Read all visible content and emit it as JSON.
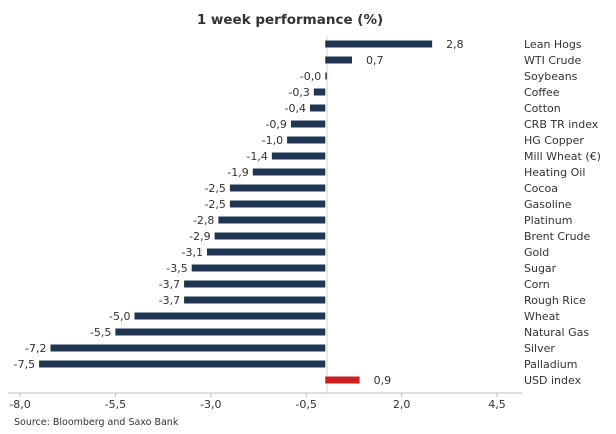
{
  "chart_data": {
    "type": "bar",
    "orientation": "horizontal",
    "title": "1 week performance (%)",
    "categories": [
      "Lean Hogs",
      "WTI Crude",
      "Soybeans",
      "Coffee",
      "Cotton",
      "CRB TR index",
      "HG Copper",
      "Mill Wheat (€)",
      "Heating Oil",
      "Cocoa",
      "Gasoline",
      "Platinum",
      "Brent Crude",
      "Gold",
      "Sugar",
      "Corn",
      "Rough Rice",
      "Wheat",
      "Natural Gas",
      "Silver",
      "Palladium",
      "USD index"
    ],
    "values": [
      2.8,
      0.7,
      -0.0,
      -0.3,
      -0.4,
      -0.9,
      -1.0,
      -1.4,
      -1.9,
      -2.5,
      -2.5,
      -2.8,
      -2.9,
      -3.1,
      -3.5,
      -3.7,
      -3.7,
      -5.0,
      -5.5,
      -7.2,
      -7.5,
      0.9
    ],
    "value_labels": [
      "2,8",
      "0,7",
      "-0,0",
      "-0,3",
      "-0,4",
      "-0,9",
      "-1,0",
      "-1,4",
      "-1,9",
      "-2,5",
      "-2,5",
      "-2,8",
      "-2,9",
      "-3,1",
      "-3,5",
      "-3,7",
      "-3,7",
      "-5,0",
      "-5,5",
      "-7,2",
      "-7,5",
      "0,9"
    ],
    "xlim": [
      -8.0,
      4.5
    ],
    "xticks": [
      -8.0,
      -5.5,
      -3.0,
      -0.5,
      2.0,
      4.5
    ],
    "xtick_labels": [
      "-8,0",
      "-5,5",
      "-3,0",
      "-0,5",
      "2,0",
      "4,5"
    ],
    "grid": false,
    "legend": "none",
    "colors": {
      "default": "#1f3552",
      "highlight": "#cc1f1f"
    },
    "highlight_categories": [
      "USD index"
    ]
  },
  "source": "Source: Bloomberg and Saxo Bank"
}
